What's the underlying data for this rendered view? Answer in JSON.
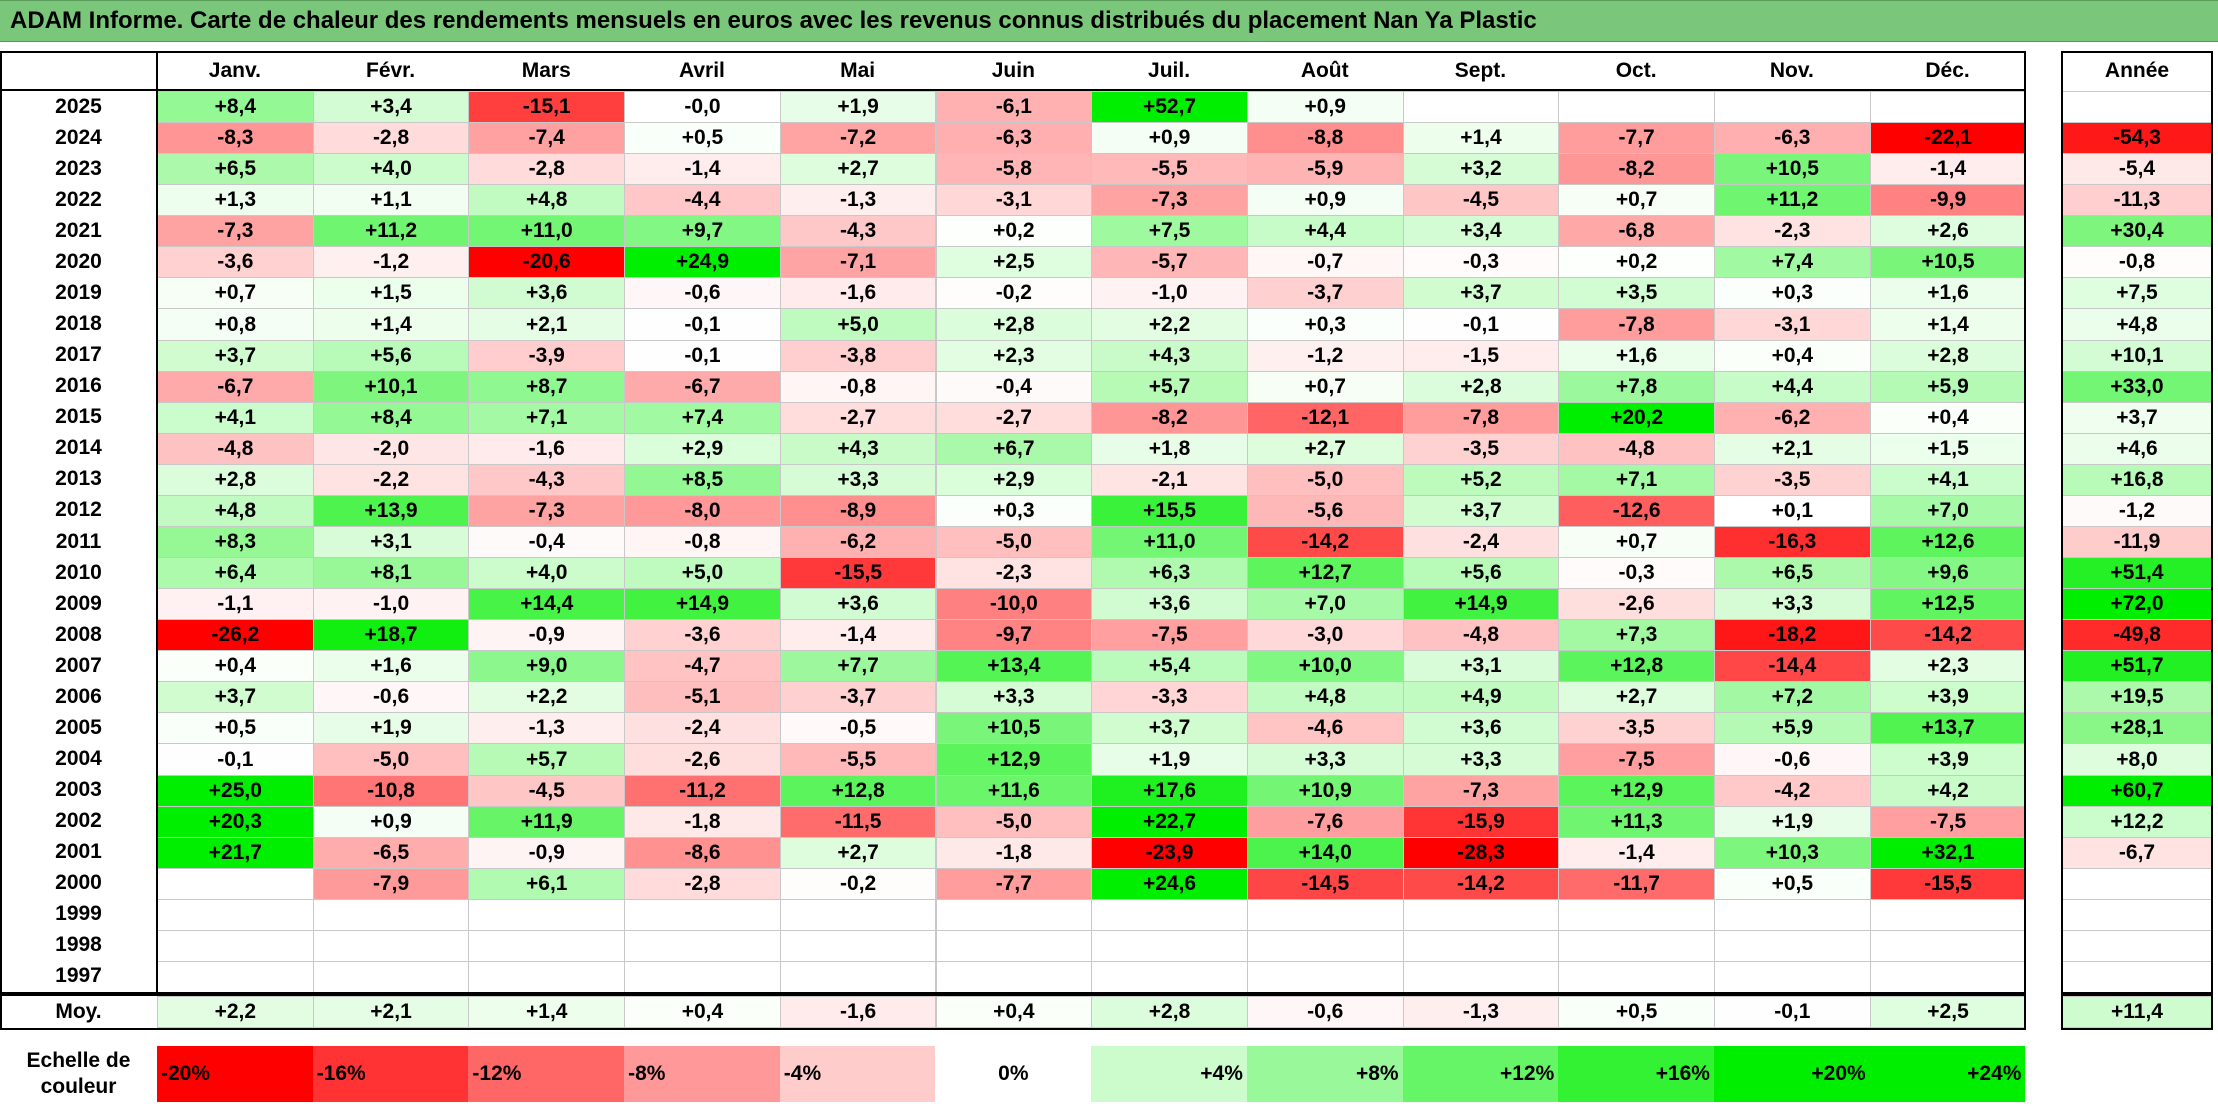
{
  "title": "ADAM Informe. Carte de chaleur des rendements mensuels en euros avec les revenus connus distribués du placement Nan Ya Plastic",
  "chart_data": {
    "type": "heatmap",
    "title": "ADAM Informe. Carte de chaleur des rendements mensuels en euros avec les revenus connus distribués du placement Nan Ya Plastic",
    "columns": [
      "Janv.",
      "Févr.",
      "Mars",
      "Avril",
      "Mai",
      "Juin",
      "Juil.",
      "Août",
      "Sept.",
      "Oct.",
      "Nov.",
      "Déc."
    ],
    "year_column_label": "Année",
    "average_row_label": "Moy.",
    "rows": [
      {
        "year": "2025",
        "values": [
          "+8,4",
          "+3,4",
          "-15,1",
          "-0,0",
          "+1,9",
          "-6,1",
          "+52,7",
          "+0,9",
          "",
          "",
          "",
          ""
        ],
        "annual": ""
      },
      {
        "year": "2024",
        "values": [
          "-8,3",
          "-2,8",
          "-7,4",
          "+0,5",
          "-7,2",
          "-6,3",
          "+0,9",
          "-8,8",
          "+1,4",
          "-7,7",
          "-6,3",
          "-22,1"
        ],
        "annual": "-54,3"
      },
      {
        "year": "2023",
        "values": [
          "+6,5",
          "+4,0",
          "-2,8",
          "-1,4",
          "+2,7",
          "-5,8",
          "-5,5",
          "-5,9",
          "+3,2",
          "-8,2",
          "+10,5",
          "-1,4"
        ],
        "annual": "-5,4"
      },
      {
        "year": "2022",
        "values": [
          "+1,3",
          "+1,1",
          "+4,8",
          "-4,4",
          "-1,3",
          "-3,1",
          "-7,3",
          "+0,9",
          "-4,5",
          "+0,7",
          "+11,2",
          "-9,9"
        ],
        "annual": "-11,3"
      },
      {
        "year": "2021",
        "values": [
          "-7,3",
          "+11,2",
          "+11,0",
          "+9,7",
          "-4,3",
          "+0,2",
          "+7,5",
          "+4,4",
          "+3,4",
          "-6,8",
          "-2,3",
          "+2,6"
        ],
        "annual": "+30,4"
      },
      {
        "year": "2020",
        "values": [
          "-3,6",
          "-1,2",
          "-20,6",
          "+24,9",
          "-7,1",
          "+2,5",
          "-5,7",
          "-0,7",
          "-0,3",
          "+0,2",
          "+7,4",
          "+10,5"
        ],
        "annual": "-0,8"
      },
      {
        "year": "2019",
        "values": [
          "+0,7",
          "+1,5",
          "+3,6",
          "-0,6",
          "-1,6",
          "-0,2",
          "-1,0",
          "-3,7",
          "+3,7",
          "+3,5",
          "+0,3",
          "+1,6"
        ],
        "annual": "+7,5"
      },
      {
        "year": "2018",
        "values": [
          "+0,8",
          "+1,4",
          "+2,1",
          "-0,1",
          "+5,0",
          "+2,8",
          "+2,2",
          "+0,3",
          "-0,1",
          "-7,8",
          "-3,1",
          "+1,4"
        ],
        "annual": "+4,8"
      },
      {
        "year": "2017",
        "values": [
          "+3,7",
          "+5,6",
          "-3,9",
          "-0,1",
          "-3,8",
          "+2,3",
          "+4,3",
          "-1,2",
          "-1,5",
          "+1,6",
          "+0,4",
          "+2,8"
        ],
        "annual": "+10,1"
      },
      {
        "year": "2016",
        "values": [
          "-6,7",
          "+10,1",
          "+8,7",
          "-6,7",
          "-0,8",
          "-0,4",
          "+5,7",
          "+0,7",
          "+2,8",
          "+7,8",
          "+4,4",
          "+5,9"
        ],
        "annual": "+33,0"
      },
      {
        "year": "2015",
        "values": [
          "+4,1",
          "+8,4",
          "+7,1",
          "+7,4",
          "-2,7",
          "-2,7",
          "-8,2",
          "-12,1",
          "-7,8",
          "+20,2",
          "-6,2",
          "+0,4"
        ],
        "annual": "+3,7"
      },
      {
        "year": "2014",
        "values": [
          "-4,8",
          "-2,0",
          "-1,6",
          "+2,9",
          "+4,3",
          "+6,7",
          "+1,8",
          "+2,7",
          "-3,5",
          "-4,8",
          "+2,1",
          "+1,5"
        ],
        "annual": "+4,6"
      },
      {
        "year": "2013",
        "values": [
          "+2,8",
          "-2,2",
          "-4,3",
          "+8,5",
          "+3,3",
          "+2,9",
          "-2,1",
          "-5,0",
          "+5,2",
          "+7,1",
          "-3,5",
          "+4,1"
        ],
        "annual": "+16,8"
      },
      {
        "year": "2012",
        "values": [
          "+4,8",
          "+13,9",
          "-7,3",
          "-8,0",
          "-8,9",
          "+0,3",
          "+15,5",
          "-5,6",
          "+3,7",
          "-12,6",
          "+0,1",
          "+7,0"
        ],
        "annual": "-1,2"
      },
      {
        "year": "2011",
        "values": [
          "+8,3",
          "+3,1",
          "-0,4",
          "-0,8",
          "-6,2",
          "-5,0",
          "+11,0",
          "-14,2",
          "-2,4",
          "+0,7",
          "-16,3",
          "+12,6"
        ],
        "annual": "-11,9"
      },
      {
        "year": "2010",
        "values": [
          "+6,4",
          "+8,1",
          "+4,0",
          "+5,0",
          "-15,5",
          "-2,3",
          "+6,3",
          "+12,7",
          "+5,6",
          "-0,3",
          "+6,5",
          "+9,6"
        ],
        "annual": "+51,4"
      },
      {
        "year": "2009",
        "values": [
          "-1,1",
          "-1,0",
          "+14,4",
          "+14,9",
          "+3,6",
          "-10,0",
          "+3,6",
          "+7,0",
          "+14,9",
          "-2,6",
          "+3,3",
          "+12,5"
        ],
        "annual": "+72,0"
      },
      {
        "year": "2008",
        "values": [
          "-26,2",
          "+18,7",
          "-0,9",
          "-3,6",
          "-1,4",
          "-9,7",
          "-7,5",
          "-3,0",
          "-4,8",
          "+7,3",
          "-18,2",
          "-14,2"
        ],
        "annual": "-49,8"
      },
      {
        "year": "2007",
        "values": [
          "+0,4",
          "+1,6",
          "+9,0",
          "-4,7",
          "+7,7",
          "+13,4",
          "+5,4",
          "+10,0",
          "+3,1",
          "+12,8",
          "-14,4",
          "+2,3"
        ],
        "annual": "+51,7"
      },
      {
        "year": "2006",
        "values": [
          "+3,7",
          "-0,6",
          "+2,2",
          "-5,1",
          "-3,7",
          "+3,3",
          "-3,3",
          "+4,8",
          "+4,9",
          "+2,7",
          "+7,2",
          "+3,9"
        ],
        "annual": "+19,5"
      },
      {
        "year": "2005",
        "values": [
          "+0,5",
          "+1,9",
          "-1,3",
          "-2,4",
          "-0,5",
          "+10,5",
          "+3,7",
          "-4,6",
          "+3,6",
          "-3,5",
          "+5,9",
          "+13,7"
        ],
        "annual": "+28,1"
      },
      {
        "year": "2004",
        "values": [
          "-0,1",
          "-5,0",
          "+5,7",
          "-2,6",
          "-5,5",
          "+12,9",
          "+1,9",
          "+3,3",
          "+3,3",
          "-7,5",
          "-0,6",
          "+3,9"
        ],
        "annual": "+8,0"
      },
      {
        "year": "2003",
        "values": [
          "+25,0",
          "-10,8",
          "-4,5",
          "-11,2",
          "+12,8",
          "+11,6",
          "+17,6",
          "+10,9",
          "-7,3",
          "+12,9",
          "-4,2",
          "+4,2"
        ],
        "annual": "+60,7"
      },
      {
        "year": "2002",
        "values": [
          "+20,3",
          "+0,9",
          "+11,9",
          "-1,8",
          "-11,5",
          "-5,0",
          "+22,7",
          "-7,6",
          "-15,9",
          "+11,3",
          "+1,9",
          "-7,5"
        ],
        "annual": "+12,2"
      },
      {
        "year": "2001",
        "values": [
          "+21,7",
          "-6,5",
          "-0,9",
          "-8,6",
          "+2,7",
          "-1,8",
          "-23,9",
          "+14,0",
          "-28,3",
          "-1,4",
          "+10,3",
          "+32,1"
        ],
        "annual": "-6,7"
      },
      {
        "year": "2000",
        "values": [
          "",
          "-7,9",
          "+6,1",
          "-2,8",
          "-0,2",
          "-7,7",
          "+24,6",
          "-14,5",
          "-14,2",
          "-11,7",
          "+0,5",
          "-15,5"
        ],
        "annual": ""
      },
      {
        "year": "1999",
        "values": [
          "",
          "",
          "",
          "",
          "",
          "",
          "",
          "",
          "",
          "",
          "",
          ""
        ],
        "annual": ""
      },
      {
        "year": "1998",
        "values": [
          "",
          "",
          "",
          "",
          "",
          "",
          "",
          "",
          "",
          "",
          "",
          ""
        ],
        "annual": ""
      },
      {
        "year": "1997",
        "values": [
          "",
          "",
          "",
          "",
          "",
          "",
          "",
          "",
          "",
          "",
          "",
          ""
        ],
        "annual": ""
      }
    ],
    "averages": [
      "+2,2",
      "+2,1",
      "+1,4",
      "+0,4",
      "-1,6",
      "+0,4",
      "+2,8",
      "-0,6",
      "-1,3",
      "+0,5",
      "-0,1",
      "+2,5"
    ],
    "average_annual": "+11,4",
    "color_scale": {
      "label": "Echelle de couleur",
      "steps": [
        {
          "label": "-20%",
          "value": -20
        },
        {
          "label": "-16%",
          "value": -16
        },
        {
          "label": "-12%",
          "value": -12
        },
        {
          "label": "-8%",
          "value": -8
        },
        {
          "label": "-4%",
          "value": -4
        },
        {
          "label": "0%",
          "value": 0
        },
        {
          "label": "+4%",
          "value": 4
        },
        {
          "label": "+8%",
          "value": 8
        },
        {
          "label": "+12%",
          "value": 12
        },
        {
          "label": "+16%",
          "value": 16
        },
        {
          "label": "+20%",
          "value": 20
        },
        {
          "label": "+24%",
          "value": 24
        }
      ]
    },
    "colors": {
      "negative_max": "#ff0000",
      "positive_max": "#00ee00",
      "neutral": "#ffffff",
      "title_bar": "#7ac67a"
    }
  }
}
